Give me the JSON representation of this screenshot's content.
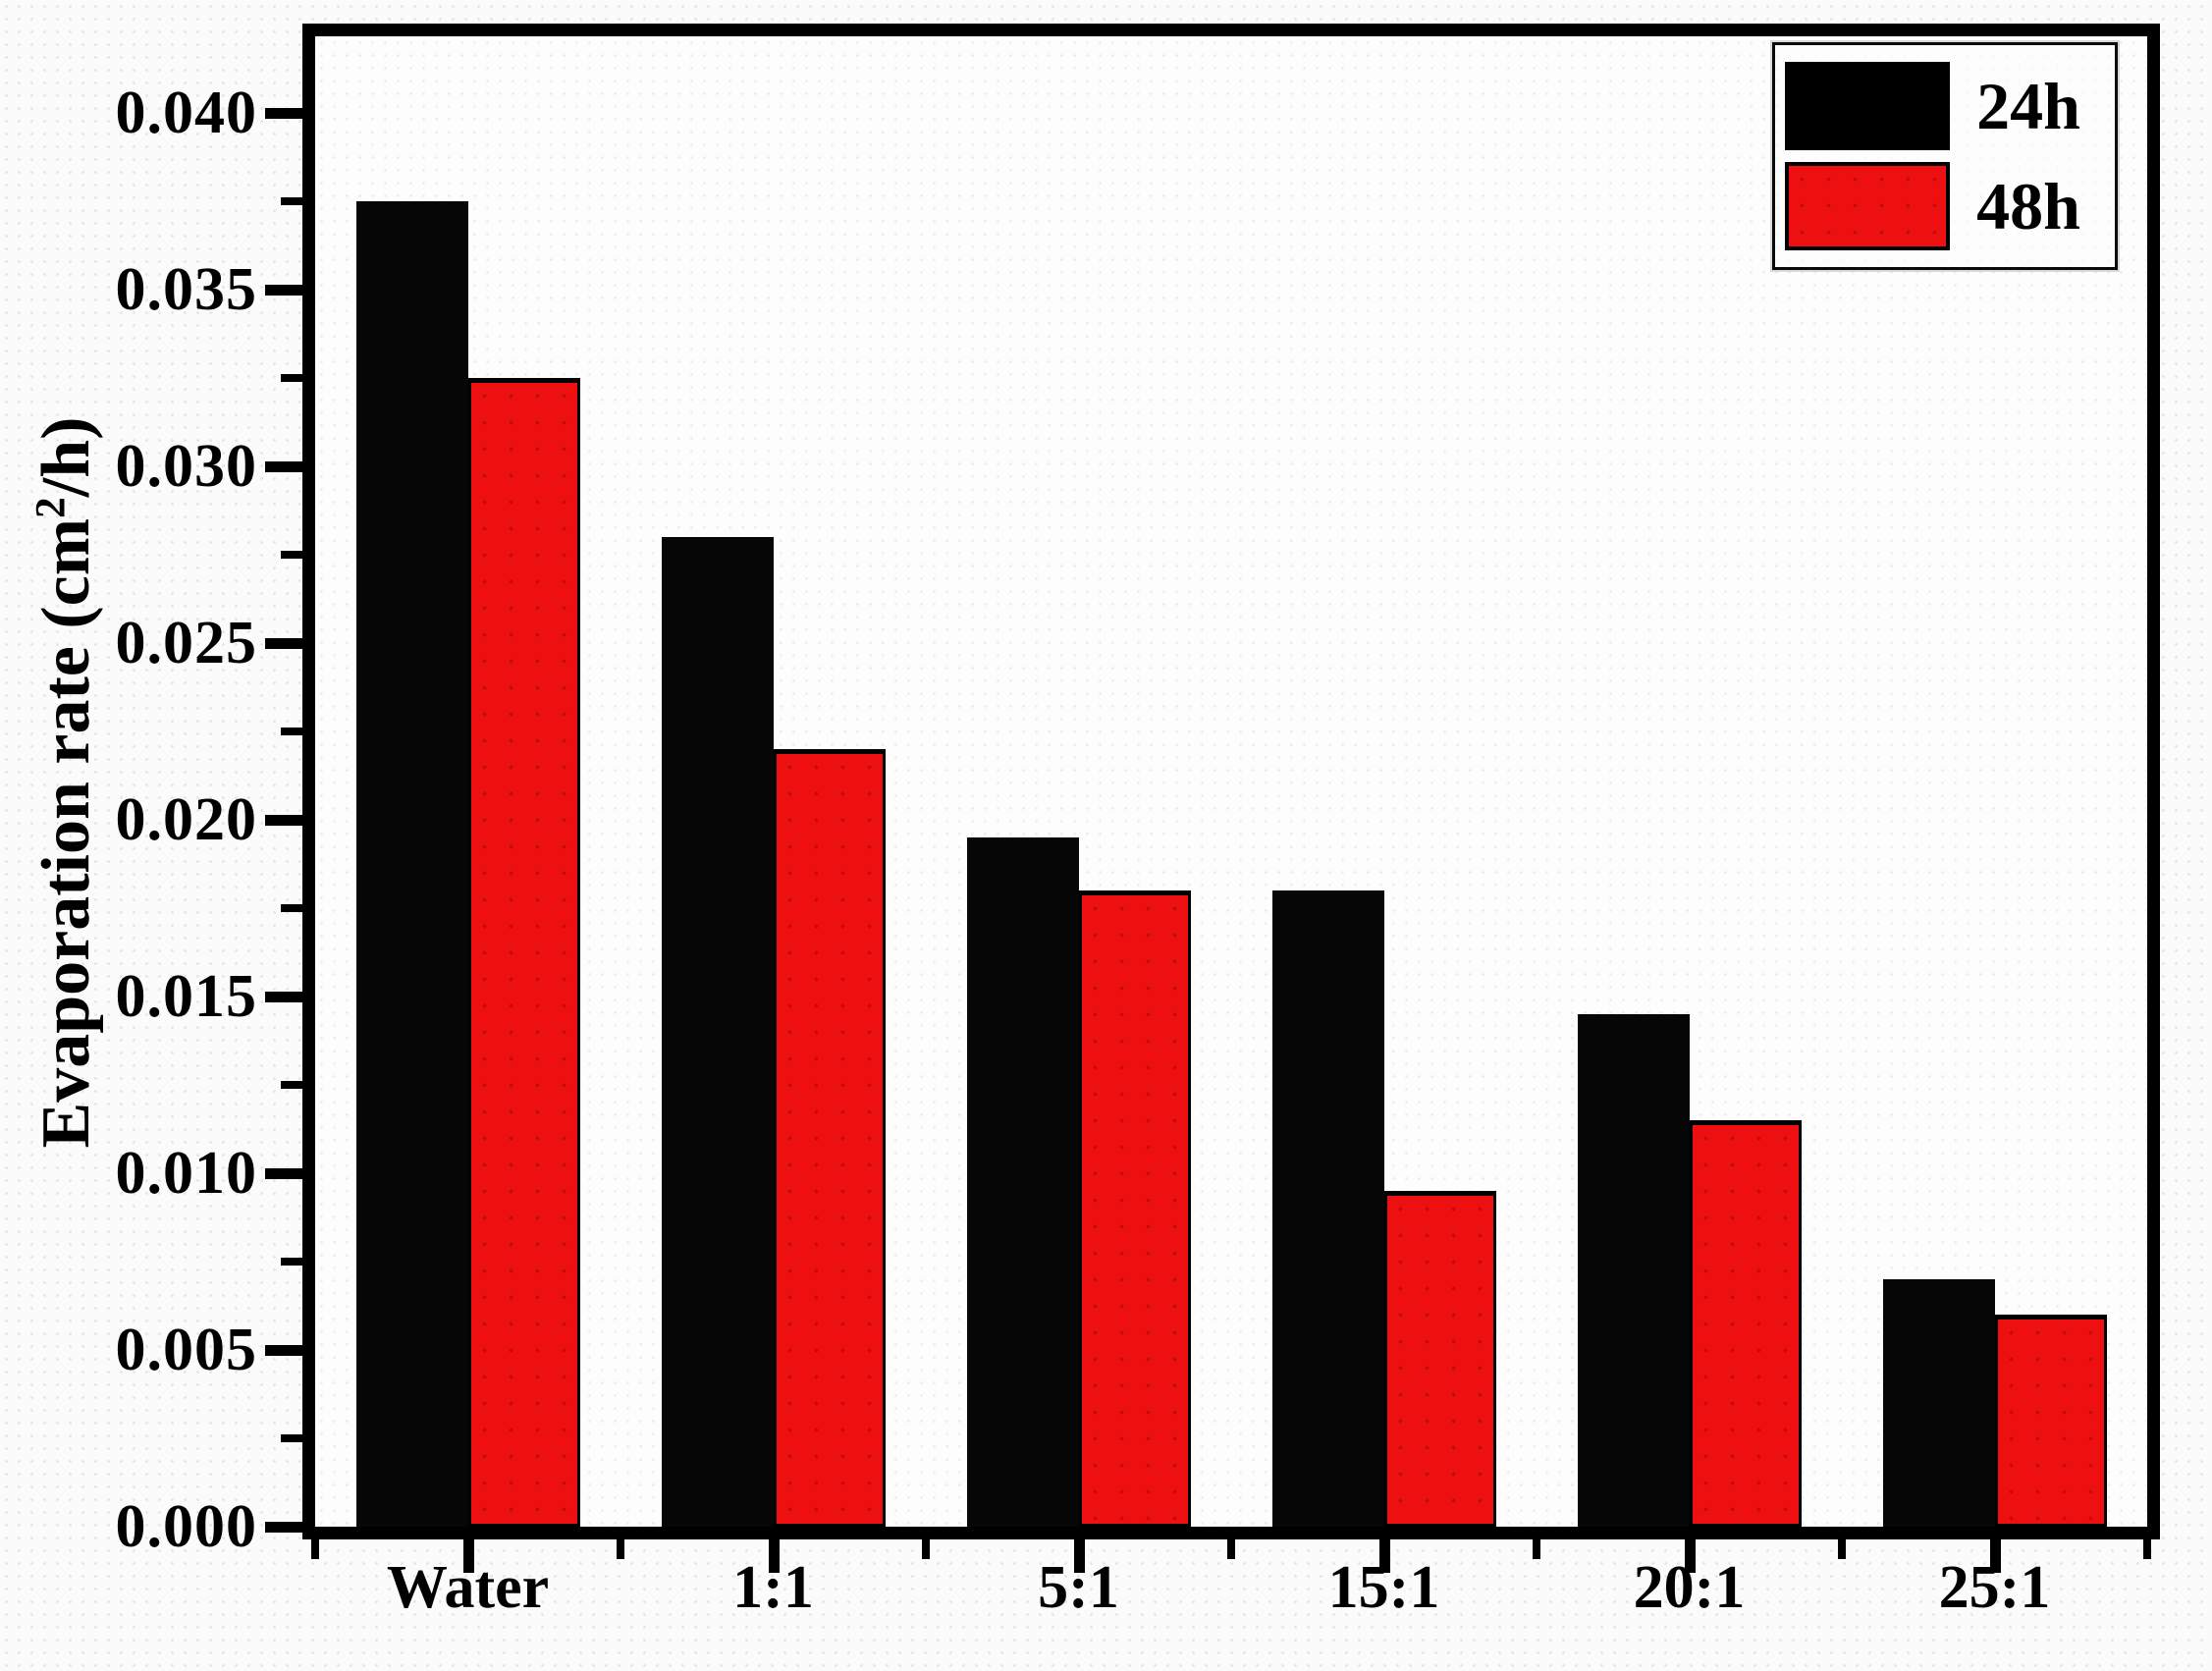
{
  "chart_data": {
    "type": "bar",
    "title": "",
    "categories": [
      "Water",
      "1:1",
      "5:1",
      "15:1",
      "20:1",
      "25:1"
    ],
    "series": [
      {
        "name": "24h",
        "color": "#000000",
        "values": [
          0.0375,
          0.028,
          0.0195,
          0.018,
          0.0145,
          0.007
        ]
      },
      {
        "name": "48h",
        "color": "#ee1010",
        "values": [
          0.0325,
          0.022,
          0.018,
          0.0095,
          0.0115,
          0.006
        ]
      }
    ],
    "xlabel": "",
    "ylabel_prefix": "Evaporation rate (cm",
    "ylabel_sup": "2",
    "ylabel_suffix": "/h)",
    "ylim": [
      0,
      0.0425
    ],
    "ytick_step": 0.005,
    "ytick_minor_step": 0.0025,
    "ytick_decimals": 3,
    "ytick_labels": [
      "0.000",
      "0.005",
      "0.010",
      "0.015",
      "0.020",
      "0.025",
      "0.030",
      "0.035",
      "0.040"
    ],
    "grid": false,
    "legend_position": "top-right"
  },
  "legend": {
    "items": [
      {
        "label": "24h",
        "color": "#000000"
      },
      {
        "label": "48h",
        "color": "#ee1010"
      }
    ]
  }
}
